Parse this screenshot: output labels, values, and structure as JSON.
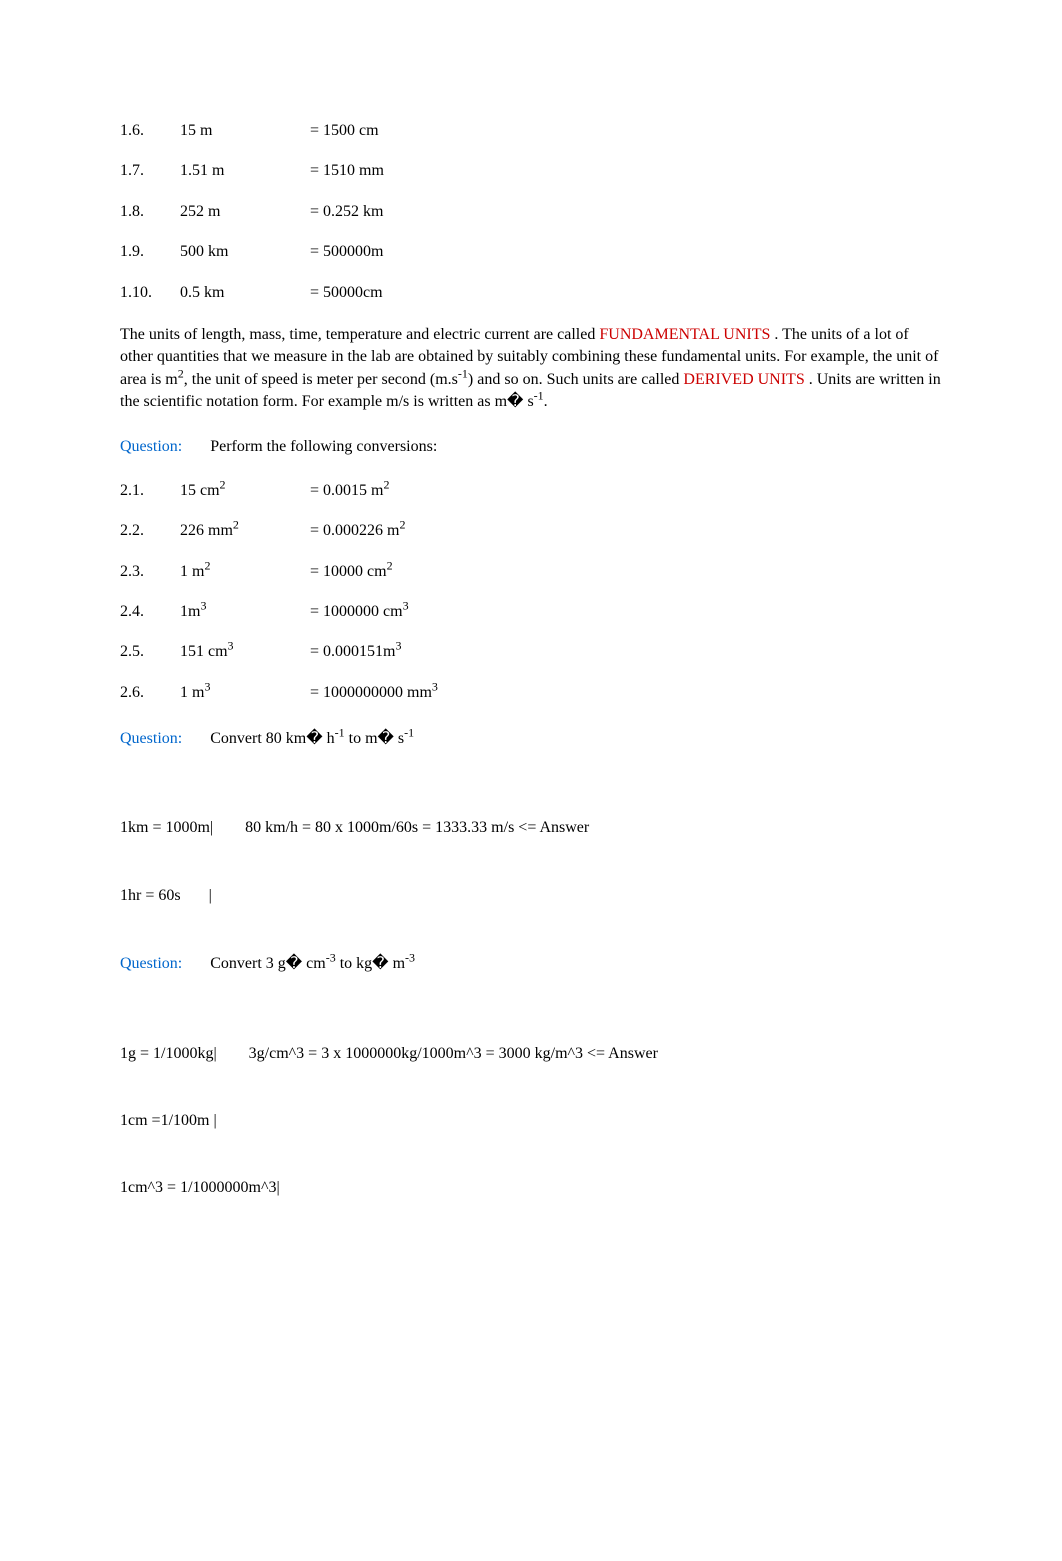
{
  "conversions1": [
    {
      "num": "1.6.",
      "a": "15 m",
      "b": "= 1500 cm"
    },
    {
      "num": "1.7.",
      "a": "1.51 m",
      "b": "= 1510 mm"
    },
    {
      "num": "1.8.",
      "a": "252 m",
      "b": "= 0.252 km"
    },
    {
      "num": "1.9.",
      "a": "500 km",
      "b": "= 500000m"
    },
    {
      "num": "1.10.",
      "a": "0.5 km",
      "b": "= 50000cm"
    }
  ],
  "para": {
    "t1": "The units of length, mass, time, temperature and electric current are called ",
    "fundamental": "FUNDAMENTAL UNITS",
    "t2": "  . The units of a lot of other quantities that we measure in the lab are obtained by suitably combining these fundamental units. For example, the unit of area is m",
    "sup1": "2",
    "t3": ", the unit of speed is meter per second (m.s",
    "sup2": "-1",
    "t4": ") and so on. Such units are called ",
    "derived": "DERIVED UNITS",
    "t5": "  . Units are written in the scientific notation form. For example m/s is written as m� s",
    "sup3": "-1",
    "t6": "."
  },
  "q1": {
    "label": "Question:",
    "text": "Perform the following conversions:"
  },
  "conversions2": [
    {
      "num": "2.1.",
      "a_pre": "15 cm",
      "a_sup": "2",
      "b_pre": "= 0.0015 m",
      "b_sup": "2"
    },
    {
      "num": "2.2.",
      "a_pre": "226 mm",
      "a_sup": "2",
      "b_pre": "= 0.000226 m",
      "b_sup": "2"
    },
    {
      "num": "2.3.",
      "a_pre": "1 m",
      "a_sup": "2",
      "b_pre": "= 10000 cm",
      "b_sup": "2"
    },
    {
      "num": "2.4.",
      "a_pre": "1m",
      "a_sup": "3",
      "b_pre": "= 1000000 cm",
      "b_sup": "3"
    },
    {
      "num": "2.5.",
      "a_pre": "151 cm",
      "a_sup": "3",
      "b_pre": "= 0.000151m",
      "b_sup": "3"
    },
    {
      "num": "2.6.",
      "a_pre": "1 m",
      "a_sup": "3",
      "b_pre": "= 1000000000 mm",
      "b_sup": "3"
    }
  ],
  "q2": {
    "label": "Question:",
    "t1": "Convert 80 km� h",
    "sup1": "-1",
    "t2": " to m� s",
    "sup2": "-1"
  },
  "work1": {
    "l1": "1km = 1000m|        80 km/h = 80 x 1000m/60s = 1333.33 m/s <= Answer",
    "l2": "1hr = 60s       |"
  },
  "q3": {
    "label": "Question:",
    "t1": "Convert 3 g� cm",
    "sup1": "-3",
    "t2": " to kg� m",
    "sup2": "-3"
  },
  "work2": {
    "l1": "1g = 1/1000kg|        3g/cm^3 = 3 x 1000000kg/1000m^3 = 3000 kg/m^3 <= Answer",
    "l2": "1cm =1/100m |",
    "l3": "1cm^3 = 1/1000000m^3|"
  }
}
